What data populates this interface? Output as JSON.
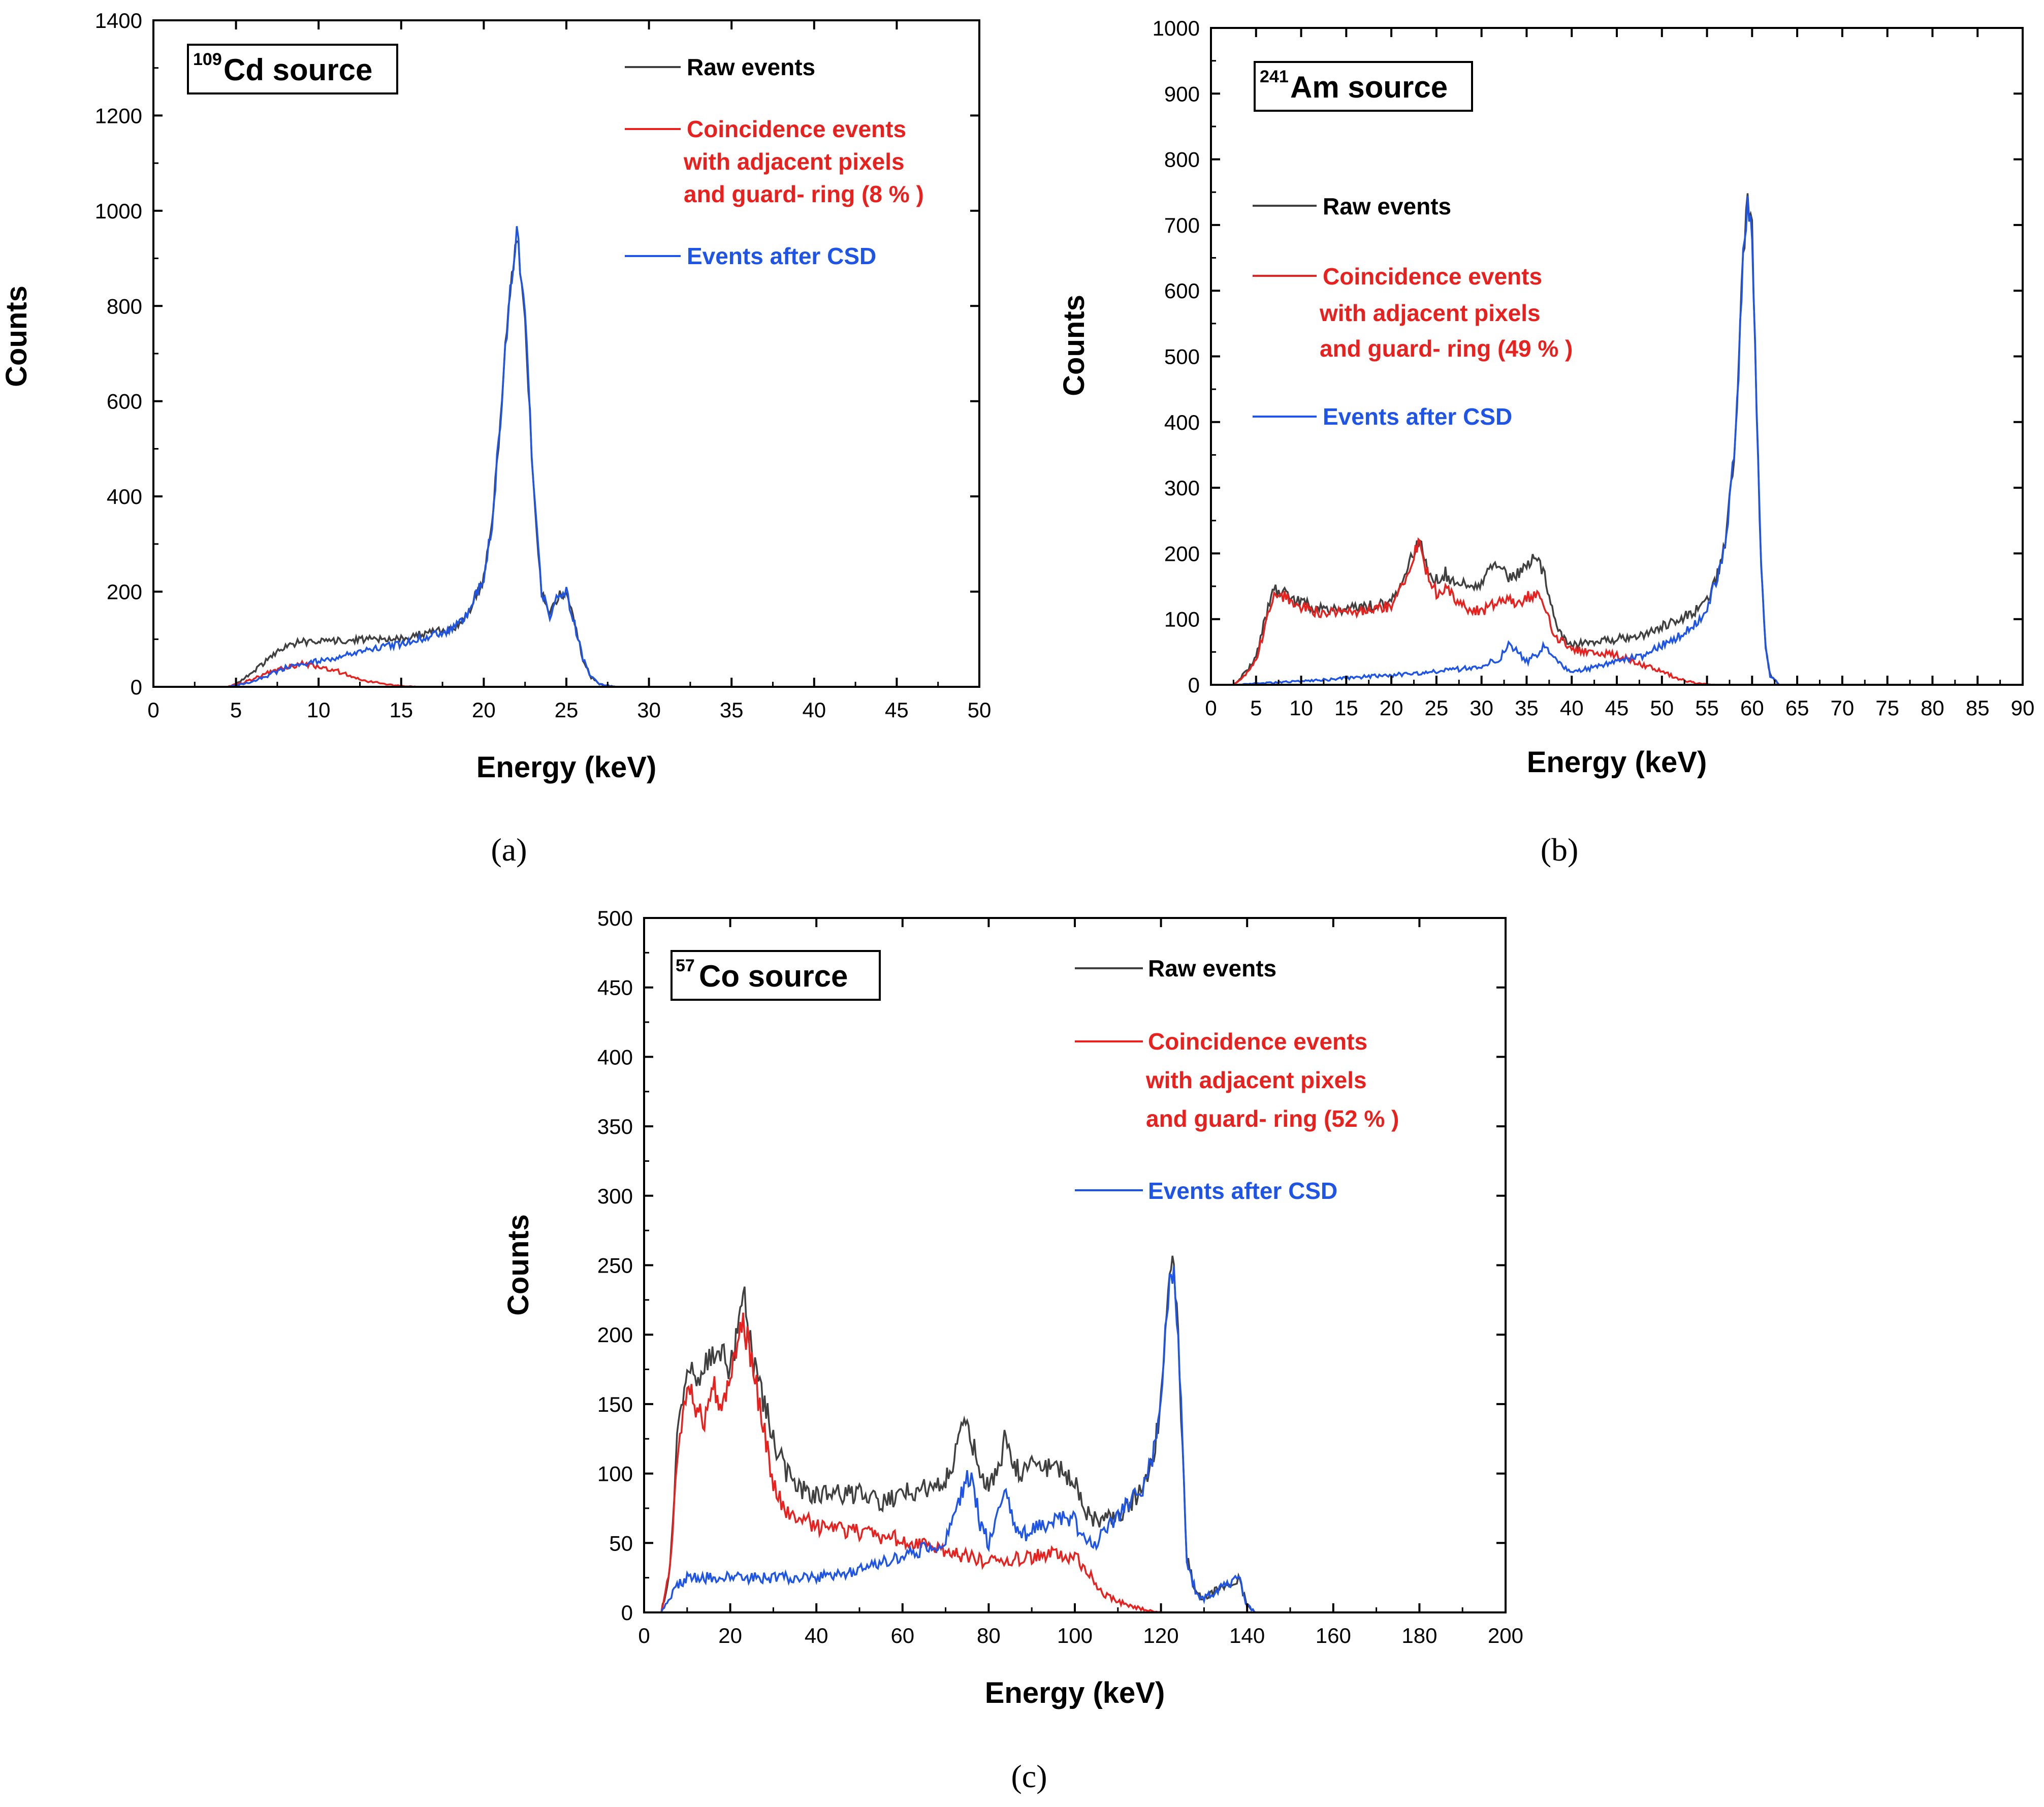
{
  "colors": {
    "raw": "#404040",
    "coincidence": "#e8201e",
    "csd": "#1f55e6"
  },
  "chart_data": [
    {
      "type": "line",
      "panel": "(a)",
      "source_label": {
        "superscript": "109",
        "text": "Cd source"
      },
      "xlabel": "Energy (keV)",
      "ylabel": "Counts",
      "xlim": [
        0,
        50
      ],
      "ylim": [
        0,
        1400
      ],
      "xticks": [
        0,
        5,
        10,
        15,
        20,
        25,
        30,
        35,
        40,
        45,
        50
      ],
      "yticks": [
        0,
        200,
        400,
        600,
        800,
        1000,
        1200,
        1400
      ],
      "legend": [
        "Raw events",
        "Coincidence events",
        "with adjacent pixels",
        "and guard- ring  (8 % )",
        "Events after CSD"
      ],
      "series": [
        {
          "name": "Raw events",
          "color": "#404040",
          "x": [
            0,
            4.5,
            5,
            6,
            7,
            8,
            9,
            10,
            11,
            12,
            13,
            14,
            15,
            16,
            17,
            18,
            19,
            20,
            20.5,
            21,
            21.5,
            22,
            22.5,
            23,
            23.5,
            24,
            24.5,
            25,
            25.5,
            26,
            26.5,
            27,
            28,
            50
          ],
          "y": [
            0,
            0,
            5,
            30,
            60,
            85,
            95,
            95,
            95,
            100,
            100,
            100,
            100,
            110,
            115,
            120,
            150,
            230,
            340,
            560,
            800,
            950,
            780,
            420,
            200,
            150,
            190,
            200,
            130,
            60,
            20,
            5,
            0,
            0
          ]
        },
        {
          "name": "Coincidence events",
          "color": "#e8201e",
          "x": [
            0,
            4.5,
            5,
            6,
            7,
            8,
            9,
            10,
            11,
            12,
            13,
            14,
            15,
            16,
            18,
            50
          ],
          "y": [
            0,
            0,
            5,
            15,
            30,
            40,
            48,
            42,
            35,
            22,
            12,
            5,
            2,
            0,
            0,
            0
          ]
        },
        {
          "name": "Events after CSD",
          "color": "#1f55e6",
          "x": [
            0,
            4.5,
            5,
            6,
            7,
            8,
            9,
            10,
            11,
            12,
            13,
            14,
            15,
            16,
            17,
            18,
            19,
            20,
            20.5,
            21,
            21.5,
            22,
            22.5,
            23,
            23.5,
            24,
            24.5,
            25,
            25.5,
            26,
            26.5,
            27,
            28,
            50
          ],
          "y": [
            0,
            0,
            3,
            10,
            25,
            40,
            45,
            55,
            60,
            70,
            80,
            85,
            90,
            100,
            110,
            120,
            150,
            230,
            340,
            560,
            800,
            955,
            780,
            420,
            200,
            150,
            190,
            200,
            130,
            60,
            20,
            5,
            0,
            0
          ]
        }
      ]
    },
    {
      "type": "line",
      "panel": "(b)",
      "source_label": {
        "superscript": "241",
        "text": "Am source"
      },
      "xlabel": "Energy (keV)",
      "ylabel": "Counts",
      "xlim": [
        0,
        90
      ],
      "ylim": [
        0,
        1000
      ],
      "xticks": [
        0,
        5,
        10,
        15,
        20,
        25,
        30,
        35,
        40,
        45,
        50,
        55,
        60,
        65,
        70,
        75,
        80,
        85,
        90
      ],
      "yticks": [
        0,
        100,
        200,
        300,
        400,
        500,
        600,
        700,
        800,
        900,
        1000
      ],
      "legend": [
        "Raw events",
        "Coincidence events",
        "with adjacent pixels",
        "and guard- ring  (49 % )",
        "Events after CSD"
      ],
      "series": [
        {
          "name": "Raw events",
          "color": "#404040",
          "x": [
            0,
            2.5,
            3,
            5,
            6,
            7,
            8,
            10,
            12,
            15,
            18,
            20,
            21,
            22,
            23,
            24,
            25,
            26,
            27,
            28,
            30,
            31,
            32,
            33,
            34,
            35,
            36,
            37,
            38,
            39,
            40,
            42,
            45,
            48,
            50,
            52,
            54,
            55,
            56,
            57,
            58,
            58.5,
            59,
            59.5,
            60,
            60.5,
            61,
            61.5,
            62,
            63,
            90
          ],
          "y": [
            0,
            0,
            5,
            40,
            100,
            145,
            140,
            125,
            115,
            115,
            120,
            125,
            150,
            190,
            220,
            180,
            160,
            170,
            150,
            155,
            150,
            180,
            185,
            160,
            170,
            175,
            195,
            170,
            100,
            70,
            60,
            65,
            70,
            75,
            90,
            100,
            115,
            130,
            160,
            210,
            350,
            480,
            660,
            735,
            690,
            420,
            180,
            60,
            15,
            0,
            0
          ]
        },
        {
          "name": "Coincidence events",
          "color": "#e8201e",
          "x": [
            0,
            2.5,
            3,
            5,
            6,
            7,
            8,
            10,
            12,
            15,
            18,
            20,
            21,
            22,
            23,
            24,
            25,
            26,
            28,
            30,
            32,
            34,
            36,
            37,
            38,
            40,
            42,
            45,
            48,
            50,
            52,
            54,
            56,
            90
          ],
          "y": [
            0,
            0,
            5,
            35,
            90,
            140,
            135,
            120,
            110,
            110,
            115,
            120,
            140,
            175,
            215,
            170,
            140,
            145,
            120,
            110,
            130,
            125,
            140,
            120,
            75,
            55,
            50,
            45,
            30,
            20,
            8,
            2,
            0,
            0
          ]
        },
        {
          "name": "Events after CSD",
          "color": "#1f55e6",
          "x": [
            0,
            3,
            5,
            10,
            15,
            20,
            25,
            30,
            32,
            33,
            34,
            35,
            36,
            37,
            38,
            40,
            42,
            45,
            48,
            50,
            52,
            54,
            55,
            56,
            57,
            58,
            58.5,
            59,
            59.5,
            60,
            60.5,
            61,
            61.5,
            62,
            63,
            90
          ],
          "y": [
            0,
            0,
            2,
            5,
            10,
            15,
            20,
            28,
            40,
            60,
            50,
            35,
            45,
            60,
            40,
            20,
            25,
            35,
            45,
            60,
            75,
            95,
            120,
            160,
            210,
            350,
            480,
            660,
            735,
            690,
            420,
            180,
            60,
            15,
            0,
            0
          ]
        }
      ]
    },
    {
      "type": "line",
      "panel": "(c)",
      "source_label": {
        "superscript": "57",
        "text": "Co source"
      },
      "xlabel": "Energy (keV)",
      "ylabel": "Counts",
      "xlim": [
        0,
        200
      ],
      "ylim": [
        0,
        500
      ],
      "xticks": [
        0,
        20,
        40,
        60,
        80,
        100,
        120,
        140,
        160,
        180,
        200
      ],
      "yticks": [
        0,
        50,
        100,
        150,
        200,
        250,
        300,
        350,
        400,
        450,
        500
      ],
      "legend": [
        "Raw events",
        "Coincidence events",
        "with adjacent pixels",
        "and guard- ring  (52 % )",
        "Events after CSD"
      ],
      "series": [
        {
          "name": "Raw events",
          "color": "#404040",
          "x": [
            0,
            4,
            6,
            8,
            10,
            14,
            17,
            20,
            22,
            23,
            25,
            28,
            30,
            33,
            36,
            40,
            45,
            50,
            55,
            60,
            65,
            70,
            72,
            74,
            76,
            78,
            80,
            83,
            84,
            86,
            88,
            90,
            95,
            100,
            102,
            105,
            110,
            115,
            118,
            120,
            121,
            122,
            123,
            124,
            125,
            126,
            128,
            130,
            135,
            138,
            140,
            142,
            200
          ],
          "y": [
            0,
            0,
            30,
            140,
            170,
            175,
            190,
            175,
            205,
            235,
            185,
            150,
            125,
            100,
            90,
            85,
            85,
            85,
            80,
            85,
            90,
            95,
            110,
            140,
            125,
            100,
            90,
            110,
            130,
            105,
            100,
            105,
            105,
            95,
            75,
            65,
            70,
            85,
            110,
            150,
            200,
            240,
            250,
            200,
            120,
            40,
            15,
            10,
            20,
            25,
            5,
            0,
            0
          ]
        },
        {
          "name": "Coincidence events",
          "color": "#e8201e",
          "x": [
            0,
            4,
            6,
            8,
            10,
            12,
            14,
            16,
            18,
            20,
            22,
            23,
            25,
            28,
            30,
            33,
            36,
            40,
            45,
            50,
            55,
            60,
            65,
            70,
            75,
            80,
            85,
            90,
            95,
            100,
            103,
            106,
            110,
            115,
            120,
            200
          ],
          "y": [
            0,
            0,
            30,
            120,
            160,
            150,
            140,
            165,
            150,
            170,
            200,
            210,
            180,
            130,
            90,
            75,
            68,
            62,
            60,
            58,
            55,
            52,
            48,
            44,
            40,
            36,
            38,
            40,
            42,
            40,
            30,
            15,
            8,
            3,
            0,
            0
          ]
        },
        {
          "name": "Events after CSD",
          "color": "#1f55e6",
          "x": [
            0,
            4,
            6,
            8,
            10,
            20,
            30,
            40,
            50,
            55,
            60,
            65,
            70,
            72,
            74,
            76,
            78,
            80,
            83,
            84,
            86,
            88,
            90,
            95,
            98,
            100,
            102,
            105,
            110,
            115,
            118,
            120,
            121,
            122,
            123,
            124,
            125,
            126,
            128,
            130,
            135,
            138,
            140,
            142,
            200
          ],
          "y": [
            0,
            0,
            10,
            20,
            25,
            25,
            25,
            25,
            30,
            35,
            40,
            45,
            50,
            70,
            90,
            100,
            65,
            50,
            80,
            85,
            60,
            55,
            60,
            65,
            70,
            65,
            55,
            50,
            70,
            85,
            110,
            150,
            200,
            240,
            250,
            200,
            120,
            40,
            15,
            10,
            20,
            25,
            5,
            0,
            0
          ]
        }
      ]
    }
  ]
}
